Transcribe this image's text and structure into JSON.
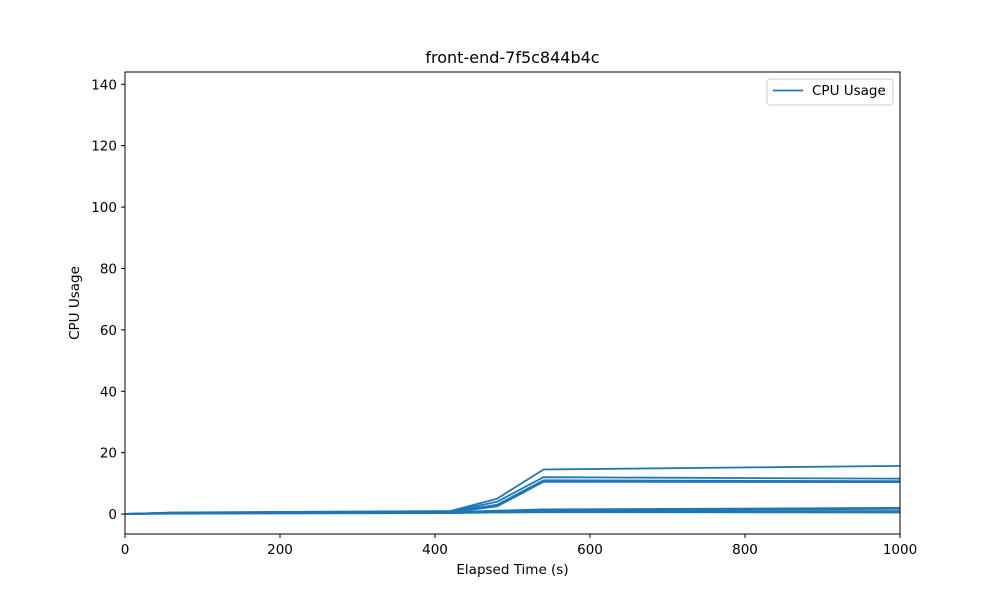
{
  "chart_data": {
    "type": "line",
    "title": "front-end-7f5c844b4c",
    "xlabel": "Elapsed Time (s)",
    "ylabel": "CPU Usage",
    "xlim": [
      0,
      1000
    ],
    "ylim": [
      -6.5,
      144
    ],
    "xticks": [
      0,
      200,
      400,
      600,
      800,
      1000
    ],
    "yticks": [
      0,
      20,
      40,
      60,
      80,
      100,
      120,
      140
    ],
    "grid": false,
    "legend": {
      "position": "top-right",
      "entries": [
        "CPU Usage"
      ]
    },
    "color": "#1f77b4",
    "series": [
      {
        "x": [
          0,
          60,
          420,
          480,
          540,
          1000
        ],
        "y": [
          0,
          0.5,
          1.0,
          5.0,
          14.5,
          15.7
        ]
      },
      {
        "x": [
          0,
          60,
          420,
          480,
          540,
          1000
        ],
        "y": [
          0,
          0.4,
          0.8,
          4.0,
          12.0,
          11.5
        ]
      },
      {
        "x": [
          0,
          60,
          420,
          480,
          540,
          1000
        ],
        "y": [
          0,
          0.4,
          0.7,
          3.0,
          11.0,
          10.7
        ]
      },
      {
        "x": [
          0,
          60,
          420,
          480,
          540,
          1000
        ],
        "y": [
          0,
          0.3,
          0.6,
          2.5,
          10.5,
          10.4
        ]
      },
      {
        "x": [
          0,
          60,
          420,
          480,
          540,
          1000
        ],
        "y": [
          0,
          0.3,
          0.6,
          1.1,
          1.5,
          2.0
        ]
      },
      {
        "x": [
          0,
          60,
          420,
          480,
          540,
          1000
        ],
        "y": [
          0,
          0.2,
          0.5,
          0.9,
          1.2,
          1.7
        ]
      },
      {
        "x": [
          0,
          60,
          420,
          480,
          540,
          1000
        ],
        "y": [
          0,
          0.2,
          0.4,
          0.7,
          0.9,
          1.0
        ]
      },
      {
        "x": [
          0,
          60,
          420,
          480,
          540,
          1000
        ],
        "y": [
          0,
          0.1,
          0.3,
          0.5,
          0.6,
          0.5
        ]
      }
    ]
  }
}
